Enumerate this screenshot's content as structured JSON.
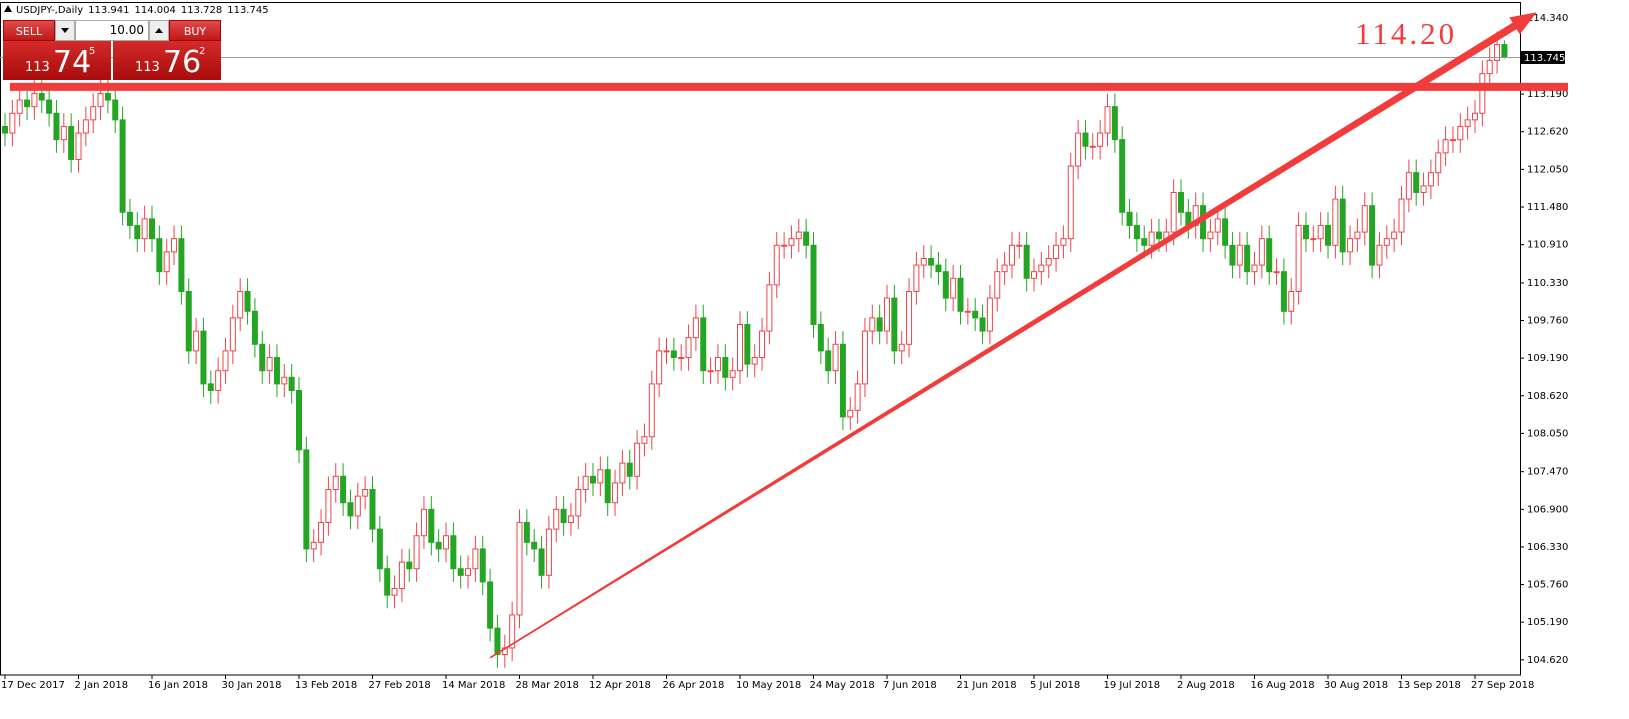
{
  "chart_data": {
    "type": "candlestick",
    "symbol": "USDJPY-,Daily",
    "annotation": "114.20",
    "up_color": "#f0444a",
    "down_color": "#24a524",
    "line_color": "#f23c3c",
    "ylim": [
      104.39,
      114.54
    ],
    "yticks": [
      {
        "value": 104.62,
        "label": "104.620"
      },
      {
        "value": 105.19,
        "label": "105.190"
      },
      {
        "value": 105.76,
        "label": "105.760"
      },
      {
        "value": 106.33,
        "label": "106.330"
      },
      {
        "value": 106.9,
        "label": "106.900"
      },
      {
        "value": 107.47,
        "label": "107.470"
      },
      {
        "value": 108.05,
        "label": "108.050"
      },
      {
        "value": 108.62,
        "label": "108.620"
      },
      {
        "value": 109.19,
        "label": "109.190"
      },
      {
        "value": 109.76,
        "label": "109.760"
      },
      {
        "value": 110.33,
        "label": "110.330"
      },
      {
        "value": 110.91,
        "label": "110.910"
      },
      {
        "value": 111.48,
        "label": "111.480"
      },
      {
        "value": 112.05,
        "label": "112.050"
      },
      {
        "value": 112.62,
        "label": "112.620"
      },
      {
        "value": 113.19,
        "label": "113.190"
      },
      {
        "value": 114.34,
        "label": "114.340"
      }
    ],
    "categories": [
      "17 Dec 2017",
      null,
      null,
      null,
      null,
      null,
      null,
      null,
      null,
      null,
      "2 Jan 2018",
      null,
      null,
      null,
      null,
      null,
      null,
      null,
      null,
      null,
      "16 Jan 2018",
      null,
      null,
      null,
      null,
      null,
      null,
      null,
      null,
      null,
      "30 Jan 2018",
      null,
      null,
      null,
      null,
      null,
      null,
      null,
      null,
      null,
      "13 Feb 2018",
      null,
      null,
      null,
      null,
      null,
      null,
      null,
      null,
      null,
      "27 Feb 2018",
      null,
      null,
      null,
      null,
      null,
      null,
      null,
      null,
      null,
      "14 Mar 2018",
      null,
      null,
      null,
      null,
      null,
      null,
      null,
      null,
      null,
      "28 Mar 2018",
      null,
      null,
      null,
      null,
      null,
      null,
      null,
      null,
      null,
      "12 Apr 2018",
      null,
      null,
      null,
      null,
      null,
      null,
      null,
      null,
      null,
      "26 Apr 2018",
      null,
      null,
      null,
      null,
      null,
      null,
      null,
      null,
      null,
      "10 May 2018",
      null,
      null,
      null,
      null,
      null,
      null,
      null,
      null,
      null,
      "24 May 2018",
      null,
      null,
      null,
      null,
      null,
      null,
      null,
      null,
      null,
      "7 Jun 2018",
      null,
      null,
      null,
      null,
      null,
      null,
      null,
      null,
      null,
      "21 Jun 2018",
      null,
      null,
      null,
      null,
      null,
      null,
      null,
      null,
      null,
      "5 Jul 2018",
      null,
      null,
      null,
      null,
      null,
      null,
      null,
      null,
      null,
      "19 Jul 2018",
      null,
      null,
      null,
      null,
      null,
      null,
      null,
      null,
      null,
      "2 Aug 2018",
      null,
      null,
      null,
      null,
      null,
      null,
      null,
      null,
      null,
      "16 Aug 2018",
      null,
      null,
      null,
      null,
      null,
      null,
      null,
      null,
      null,
      "30 Aug 2018",
      null,
      null,
      null,
      null,
      null,
      null,
      null,
      null,
      null,
      "13 Sep 2018",
      null,
      null,
      null,
      null,
      null,
      null,
      null,
      null,
      null,
      "27 Sep 2018",
      null,
      null,
      null,
      null
    ],
    "open": [
      112.7,
      112.6,
      112.9,
      113.1,
      113.0,
      113.2,
      113.1,
      112.9,
      112.5,
      112.7,
      112.2,
      112.6,
      112.8,
      113.0,
      113.2,
      113.1,
      112.8,
      111.4,
      111.2,
      111.0,
      111.3,
      111.0,
      110.5,
      110.8,
      111.0,
      110.2,
      109.3,
      109.6,
      108.8,
      108.7,
      109.0,
      109.3,
      109.8,
      110.2,
      109.9,
      109.4,
      109.0,
      109.2,
      108.8,
      108.9,
      108.7,
      107.8,
      106.3,
      106.4,
      106.7,
      107.2,
      107.4,
      107.0,
      106.8,
      107.1,
      107.2,
      106.6,
      106.0,
      105.6,
      105.7,
      106.1,
      106.0,
      106.5,
      106.9,
      106.4,
      106.3,
      106.5,
      106.0,
      105.9,
      106.0,
      106.3,
      105.8,
      105.1,
      104.7,
      104.8,
      105.3,
      106.7,
      106.4,
      106.3,
      105.9,
      106.6,
      106.9,
      106.7,
      106.8,
      107.2,
      107.4,
      107.3,
      107.5,
      107.0,
      107.3,
      107.6,
      107.4,
      107.9,
      108.0,
      108.8,
      109.3,
      109.3,
      109.2,
      109.2,
      109.5,
      109.8,
      109.0,
      109.0,
      109.2,
      108.9,
      109.0,
      109.7,
      109.1,
      109.2,
      109.6,
      110.3,
      110.9,
      110.9,
      111.0,
      111.1,
      110.9,
      109.7,
      109.3,
      109.0,
      109.4,
      108.3,
      108.4,
      108.8,
      109.6,
      109.8,
      109.6,
      110.1,
      109.3,
      109.4,
      110.2,
      110.6,
      110.7,
      110.6,
      110.5,
      110.1,
      110.4,
      109.9,
      109.9,
      109.8,
      109.6,
      110.1,
      110.5,
      110.6,
      110.9,
      110.9,
      110.4,
      110.5,
      110.6,
      110.7,
      110.9,
      111.0,
      112.1,
      112.6,
      112.4,
      112.4,
      112.6,
      113.0,
      112.5,
      111.4,
      111.2,
      111.0,
      110.9,
      111.1,
      111.0,
      111.1,
      111.7,
      111.4,
      111.2,
      111.5,
      111.0,
      111.1,
      111.3,
      110.9,
      110.6,
      110.9,
      110.5,
      110.6,
      111.0,
      110.5,
      110.5,
      109.9,
      110.2,
      111.2,
      111.0,
      111.0,
      111.2,
      110.9,
      111.6,
      110.8,
      111.0,
      111.1,
      111.5,
      110.6,
      110.9,
      111.0,
      111.1,
      111.6,
      112.0,
      111.7,
      111.8,
      112.0,
      112.3,
      112.5,
      112.5,
      112.7,
      112.8,
      112.9,
      113.5,
      113.7,
      113.941
    ],
    "high": [
      112.9,
      113.1,
      113.3,
      113.3,
      113.4,
      113.4,
      113.3,
      113.1,
      112.9,
      112.9,
      112.8,
      113.0,
      113.2,
      113.4,
      113.4,
      113.3,
      113.0,
      111.6,
      111.4,
      111.5,
      111.5,
      111.2,
      111.0,
      111.2,
      111.2,
      110.4,
      109.8,
      109.8,
      109.0,
      109.2,
      109.5,
      110.0,
      110.4,
      110.4,
      110.1,
      109.6,
      109.4,
      109.4,
      109.1,
      109.1,
      108.9,
      108.0,
      106.6,
      106.9,
      107.4,
      107.6,
      107.6,
      107.2,
      107.3,
      107.4,
      107.4,
      106.8,
      106.2,
      105.9,
      106.3,
      106.3,
      106.7,
      107.1,
      107.1,
      106.6,
      106.7,
      106.7,
      106.2,
      106.2,
      106.5,
      106.5,
      106.0,
      105.3,
      105.0,
      105.5,
      106.9,
      106.9,
      106.6,
      106.5,
      106.8,
      107.1,
      107.1,
      107.0,
      107.4,
      107.6,
      107.6,
      107.7,
      107.7,
      107.5,
      107.8,
      107.8,
      108.1,
      108.2,
      109.0,
      109.5,
      109.5,
      109.5,
      109.4,
      109.7,
      110.0,
      110.0,
      109.2,
      109.4,
      109.4,
      109.2,
      109.9,
      109.9,
      109.4,
      109.8,
      110.5,
      111.1,
      111.1,
      111.2,
      111.3,
      111.3,
      111.1,
      109.9,
      109.5,
      109.6,
      109.6,
      108.6,
      109.0,
      109.8,
      110.0,
      110.0,
      110.3,
      110.3,
      109.6,
      110.4,
      110.8,
      110.9,
      110.9,
      110.8,
      110.7,
      110.6,
      110.6,
      110.1,
      110.1,
      110.0,
      110.3,
      110.7,
      110.8,
      111.1,
      111.1,
      111.1,
      110.7,
      110.8,
      110.9,
      111.1,
      111.2,
      112.3,
      112.8,
      112.8,
      112.6,
      112.8,
      113.2,
      113.2,
      112.7,
      111.6,
      111.4,
      111.2,
      111.3,
      111.3,
      111.3,
      111.9,
      111.9,
      111.6,
      111.7,
      111.7,
      111.3,
      111.5,
      111.5,
      111.1,
      111.1,
      111.1,
      110.8,
      111.2,
      111.2,
      110.7,
      110.7,
      110.4,
      111.4,
      111.4,
      111.2,
      111.4,
      111.4,
      111.8,
      111.8,
      111.2,
      111.3,
      111.7,
      111.7,
      111.1,
      111.2,
      111.3,
      111.8,
      112.2,
      112.2,
      112.0,
      112.2,
      112.5,
      112.7,
      112.7,
      112.9,
      113.0,
      113.1,
      113.7,
      113.9,
      114.14,
      114.004
    ],
    "low": [
      112.4,
      112.4,
      112.7,
      112.8,
      112.8,
      112.9,
      112.7,
      112.3,
      112.3,
      112.0,
      112.0,
      112.4,
      112.6,
      112.8,
      112.9,
      112.6,
      111.2,
      111.0,
      110.8,
      110.8,
      110.8,
      110.3,
      110.3,
      110.6,
      110.0,
      109.1,
      109.1,
      108.6,
      108.5,
      108.5,
      108.8,
      109.1,
      109.6,
      109.7,
      109.2,
      108.8,
      108.8,
      108.6,
      108.6,
      108.5,
      107.6,
      106.1,
      106.1,
      106.2,
      106.5,
      107.0,
      106.8,
      106.6,
      106.6,
      106.9,
      106.4,
      105.8,
      105.4,
      105.4,
      105.5,
      105.8,
      105.8,
      106.3,
      106.2,
      106.1,
      106.1,
      105.8,
      105.7,
      105.7,
      105.8,
      105.6,
      104.9,
      104.5,
      104.5,
      104.6,
      105.1,
      106.2,
      106.1,
      105.7,
      105.7,
      106.4,
      106.5,
      106.5,
      106.6,
      107.0,
      107.1,
      107.1,
      106.8,
      106.8,
      107.1,
      107.2,
      107.2,
      107.7,
      107.8,
      108.6,
      109.1,
      109.0,
      109.0,
      109.0,
      109.3,
      108.8,
      108.8,
      108.8,
      108.7,
      108.7,
      108.8,
      108.9,
      108.9,
      109.0,
      109.4,
      110.1,
      110.7,
      110.7,
      110.8,
      110.7,
      109.5,
      109.1,
      108.8,
      108.8,
      108.1,
      108.1,
      108.2,
      108.6,
      109.4,
      109.4,
      109.4,
      109.1,
      109.1,
      109.2,
      110.0,
      110.4,
      110.4,
      110.3,
      109.9,
      109.9,
      109.7,
      109.7,
      109.6,
      109.4,
      109.4,
      109.9,
      110.3,
      110.4,
      110.7,
      110.2,
      110.2,
      110.3,
      110.4,
      110.5,
      110.7,
      110.8,
      111.9,
      112.2,
      112.2,
      112.2,
      112.4,
      112.3,
      111.2,
      111.0,
      110.8,
      110.7,
      110.7,
      110.8,
      110.8,
      110.9,
      111.2,
      111.0,
      111.0,
      110.8,
      110.8,
      110.9,
      110.7,
      110.4,
      110.4,
      110.3,
      110.3,
      110.4,
      110.3,
      110.3,
      109.7,
      109.7,
      110.0,
      110.8,
      110.8,
      110.8,
      110.7,
      110.7,
      110.6,
      110.6,
      110.8,
      110.9,
      110.4,
      110.4,
      110.7,
      110.8,
      110.9,
      111.4,
      111.5,
      111.5,
      111.6,
      111.8,
      112.1,
      112.3,
      112.3,
      112.5,
      112.6,
      112.7,
      113.3,
      113.5,
      113.728
    ],
    "close": [
      112.6,
      112.9,
      113.1,
      113.0,
      113.2,
      113.1,
      112.9,
      112.5,
      112.7,
      112.2,
      112.6,
      112.8,
      113.0,
      113.2,
      113.1,
      112.8,
      111.4,
      111.2,
      111.0,
      111.3,
      111.0,
      110.5,
      110.8,
      111.0,
      110.2,
      109.3,
      109.6,
      108.8,
      108.7,
      109.0,
      109.3,
      109.8,
      110.2,
      109.9,
      109.4,
      109.0,
      109.2,
      108.8,
      108.9,
      108.7,
      107.8,
      106.3,
      106.4,
      106.7,
      107.2,
      107.4,
      107.0,
      106.8,
      107.1,
      107.2,
      106.6,
      106.0,
      105.6,
      105.7,
      106.1,
      106.0,
      106.5,
      106.9,
      106.4,
      106.3,
      106.5,
      106.0,
      105.9,
      106.0,
      106.3,
      105.8,
      105.1,
      104.7,
      104.8,
      105.3,
      106.7,
      106.4,
      106.3,
      105.9,
      106.6,
      106.9,
      106.7,
      106.8,
      107.2,
      107.4,
      107.3,
      107.5,
      107.0,
      107.3,
      107.6,
      107.4,
      107.9,
      108.0,
      108.8,
      109.3,
      109.3,
      109.2,
      109.2,
      109.5,
      109.8,
      109.0,
      109.0,
      109.2,
      108.9,
      109.0,
      109.7,
      109.1,
      109.2,
      109.6,
      110.3,
      110.9,
      110.9,
      111.0,
      111.1,
      110.9,
      109.7,
      109.3,
      109.0,
      109.4,
      108.3,
      108.4,
      108.8,
      109.6,
      109.8,
      109.6,
      110.1,
      109.3,
      109.4,
      110.2,
      110.6,
      110.7,
      110.6,
      110.5,
      110.1,
      110.4,
      109.9,
      109.9,
      109.8,
      109.6,
      110.1,
      110.5,
      110.6,
      110.9,
      110.9,
      110.4,
      110.5,
      110.6,
      110.7,
      110.9,
      111.0,
      112.1,
      112.6,
      112.4,
      112.4,
      112.6,
      113.0,
      112.5,
      111.4,
      111.2,
      111.0,
      110.9,
      111.1,
      111.0,
      111.1,
      111.7,
      111.4,
      111.2,
      111.5,
      111.0,
      111.1,
      111.3,
      110.9,
      110.6,
      110.9,
      110.5,
      110.6,
      111.0,
      110.5,
      110.5,
      109.9,
      110.2,
      111.2,
      111.0,
      111.0,
      111.2,
      110.9,
      111.6,
      110.8,
      111.0,
      111.1,
      111.5,
      110.6,
      110.9,
      111.0,
      111.1,
      111.6,
      112.0,
      111.7,
      111.8,
      112.0,
      112.3,
      112.5,
      112.5,
      112.7,
      112.8,
      112.9,
      113.5,
      113.7,
      113.94,
      113.745
    ],
    "resistance": 113.3,
    "trendline": {
      "x": [
        66,
        208.4
      ],
      "y": [
        104.65,
        114.43
      ]
    }
  },
  "trade_panel": {
    "sell": "SELL",
    "buy": "BUY",
    "volume": "10.00",
    "bid_big": "113",
    "bid_main": "74",
    "bid_small": "5",
    "ask_big": "113",
    "ask_main": "76",
    "ask_small": "2"
  }
}
